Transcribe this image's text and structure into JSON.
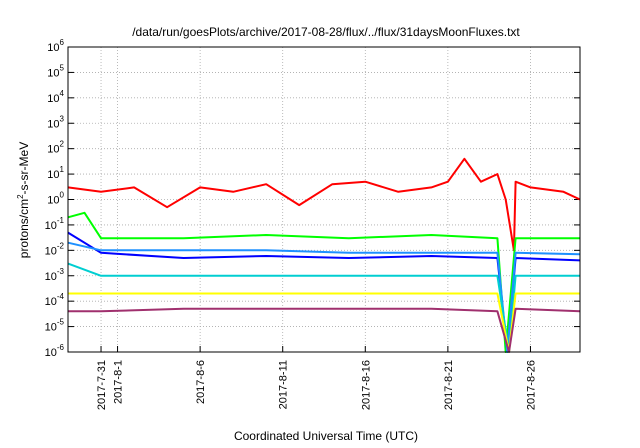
{
  "chart_data": {
    "type": "line",
    "title": "/data/run/goesPlots/archive/2017-08-28/flux/../flux/31daysMoonFluxes.txt",
    "xlabel": "Coordinated Universal Time (UTC)",
    "ylabel_parts": {
      "base": "protons/cm",
      "sup": "2",
      "rest": "-s-sr-MeV"
    },
    "y_scale": "log",
    "ylim": [
      1e-06,
      1000000.0
    ],
    "y_ticks": [
      {
        "mant": "10",
        "exp": "-6",
        "value": 1e-06
      },
      {
        "mant": "10",
        "exp": "-5",
        "value": 1e-05
      },
      {
        "mant": "10",
        "exp": "-4",
        "value": 0.0001
      },
      {
        "mant": "10",
        "exp": "-3",
        "value": 0.001
      },
      {
        "mant": "10",
        "exp": "-2",
        "value": 0.01
      },
      {
        "mant": "10",
        "exp": "-1",
        "value": 0.1
      },
      {
        "mant": "10",
        "exp": "0",
        "value": 1
      },
      {
        "mant": "10",
        "exp": "1",
        "value": 10
      },
      {
        "mant": "10",
        "exp": "2",
        "value": 100
      },
      {
        "mant": "10",
        "exp": "3",
        "value": 1000
      },
      {
        "mant": "10",
        "exp": "4",
        "value": 10000
      },
      {
        "mant": "10",
        "exp": "5",
        "value": 100000
      },
      {
        "mant": "10",
        "exp": "6",
        "value": 1000000
      }
    ],
    "xlim": [
      "2017-07-29",
      "2017-08-29"
    ],
    "x_ticks": [
      "2017-7-31",
      "2017-8-1",
      "2017-8-6",
      "2017-8-11",
      "2017-8-16",
      "2017-8-21",
      "2017-8-26"
    ],
    "grid": true,
    "series": [
      {
        "color": "#ff0000",
        "x": [
          "2017-07-29",
          "2017-07-31",
          "2017-08-02",
          "2017-08-04",
          "2017-08-06",
          "2017-08-08",
          "2017-08-10",
          "2017-08-12",
          "2017-08-14",
          "2017-08-16",
          "2017-08-18",
          "2017-08-20",
          "2017-08-21",
          "2017-08-22",
          "2017-08-23",
          "2017-08-24",
          "2017-08-24.5",
          "2017-08-25",
          "2017-08-25.1",
          "2017-08-26",
          "2017-08-28",
          "2017-08-29"
        ],
        "y": [
          3,
          2,
          3,
          0.5,
          3,
          2,
          4,
          0.6,
          4,
          5,
          2,
          3,
          5,
          40,
          5,
          10,
          1,
          0.01,
          5,
          3,
          2,
          1
        ]
      },
      {
        "color": "#00ff00",
        "x": [
          "2017-07-29",
          "2017-07-30",
          "2017-07-31",
          "2017-08-05",
          "2017-08-10",
          "2017-08-15",
          "2017-08-20",
          "2017-08-24",
          "2017-08-24.5",
          "2017-08-25.1",
          "2017-08-29"
        ],
        "y": [
          0.2,
          0.3,
          0.03,
          0.03,
          0.04,
          0.03,
          0.04,
          0.03,
          1e-06,
          0.03,
          0.03
        ]
      },
      {
        "color": "#0000ff",
        "x": [
          "2017-07-29",
          "2017-07-31",
          "2017-08-05",
          "2017-08-10",
          "2017-08-15",
          "2017-08-20",
          "2017-08-24",
          "2017-08-24.6",
          "2017-08-25.1",
          "2017-08-29"
        ],
        "y": [
          0.05,
          0.008,
          0.005,
          0.006,
          0.005,
          0.006,
          0.005,
          1e-06,
          0.005,
          0.004
        ]
      },
      {
        "color": "#1e90ff",
        "x": [
          "2017-07-29",
          "2017-07-31",
          "2017-08-05",
          "2017-08-10",
          "2017-08-15",
          "2017-08-20",
          "2017-08-24",
          "2017-08-24.6",
          "2017-08-25.1",
          "2017-08-29"
        ],
        "y": [
          0.02,
          0.01,
          0.01,
          0.01,
          0.008,
          0.008,
          0.008,
          1e-06,
          0.008,
          0.007
        ]
      },
      {
        "color": "#00ced1",
        "x": [
          "2017-07-29",
          "2017-07-31",
          "2017-08-05",
          "2017-08-10",
          "2017-08-15",
          "2017-08-20",
          "2017-08-24",
          "2017-08-24.7",
          "2017-08-25.1",
          "2017-08-29"
        ],
        "y": [
          0.003,
          0.001,
          0.001,
          0.001,
          0.001,
          0.001,
          0.001,
          1e-06,
          0.001,
          0.001
        ]
      },
      {
        "color": "#ffff00",
        "x": [
          "2017-07-29",
          "2017-07-31",
          "2017-08-05",
          "2017-08-10",
          "2017-08-15",
          "2017-08-20",
          "2017-08-24",
          "2017-08-24.7",
          "2017-08-25.1",
          "2017-08-29"
        ],
        "y": [
          0.0002,
          0.0002,
          0.0002,
          0.0002,
          0.0002,
          0.0002,
          0.0002,
          1e-06,
          0.0002,
          0.0002
        ]
      },
      {
        "color": "#a0306e",
        "x": [
          "2017-07-29",
          "2017-07-31",
          "2017-08-05",
          "2017-08-10",
          "2017-08-15",
          "2017-08-20",
          "2017-08-24",
          "2017-08-24.7",
          "2017-08-25.1",
          "2017-08-29"
        ],
        "y": [
          4e-05,
          4e-05,
          5e-05,
          5e-05,
          5e-05,
          5e-05,
          4e-05,
          1e-06,
          5e-05,
          4e-05
        ]
      }
    ]
  }
}
